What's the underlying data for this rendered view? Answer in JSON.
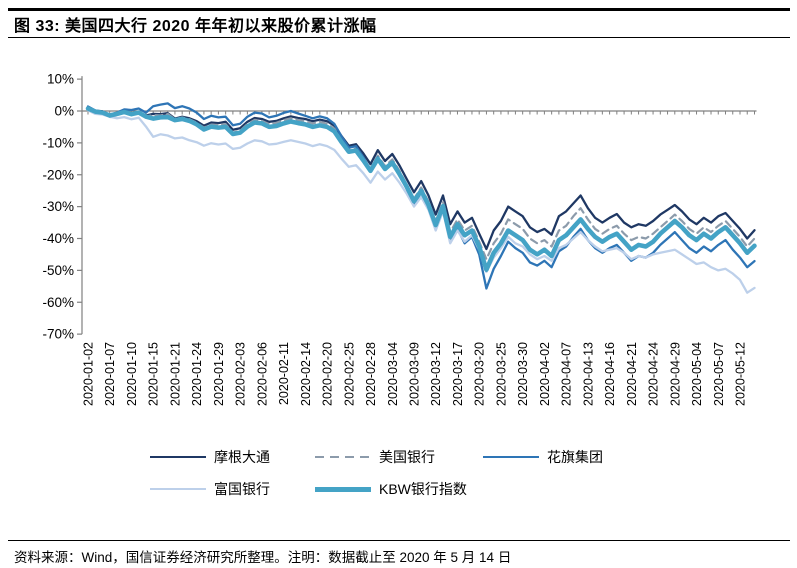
{
  "header": {
    "title": "图 33: 美国四大行 2020 年年初以来股价累计涨幅"
  },
  "footer": {
    "source": "资料来源：Wind，国信证券经济研究所整理。注明：数据截止至 2020 年 5 月 14 日"
  },
  "colors": {
    "axis": "#808080",
    "jpm": "#1F3864",
    "bac": "#8C9BAB",
    "citi": "#2E75B6",
    "wfc": "#BDD0EA",
    "kbw": "#44A3C6"
  },
  "chart_data": {
    "type": "line",
    "title": "美国四大行 2020 年年初以来股价累计涨幅",
    "xlabel": "",
    "ylabel": "",
    "ylim": [
      -70,
      10
    ],
    "grid": false,
    "legend_position": "bottom",
    "y_ticks": [
      10,
      0,
      -10,
      -20,
      -30,
      -40,
      -50,
      -60,
      -70
    ],
    "y_tick_suffix": "%",
    "x_tick_labels": [
      "2020-01-02",
      "2020-01-07",
      "2020-01-10",
      "2020-01-15",
      "2020-01-21",
      "2020-01-24",
      "2020-01-29",
      "2020-02-03",
      "2020-02-06",
      "2020-02-11",
      "2020-02-14",
      "2020-02-20",
      "2020-02-25",
      "2020-02-28",
      "2020-03-04",
      "2020-03-09",
      "2020-03-12",
      "2020-03-17",
      "2020-03-20",
      "2020-03-25",
      "2020-03-30",
      "2020-04-02",
      "2020-04-07",
      "2020-04-13",
      "2020-04-16",
      "2020-04-21",
      "2020-04-24",
      "2020-04-29",
      "2020-05-04",
      "2020-05-07",
      "2020-05-12"
    ],
    "x_label_every_n_points": 3,
    "points_per_series": 93,
    "series": [
      {
        "key": "jpm",
        "name": "摩根大通",
        "color_key": "jpm",
        "style": "solid",
        "width": 2.3,
        "values": [
          0.9,
          0.1,
          -0.1,
          -1.6,
          -1.2,
          -0.5,
          -1.1,
          -0.3,
          -1.4,
          -0.9,
          -1.0,
          -0.7,
          -2.4,
          -1.8,
          -2.3,
          -3.2,
          -4.6,
          -3.6,
          -3.8,
          -3.4,
          -5.9,
          -5.4,
          -3.4,
          -2.2,
          -2.5,
          -3.4,
          -3.1,
          -2.3,
          -1.7,
          -2.2,
          -2.5,
          -3.2,
          -2.7,
          -3.2,
          -4.6,
          -7.9,
          -10.9,
          -10.4,
          -13.3,
          -16.7,
          -12.3,
          -15.7,
          -13.5,
          -17.1,
          -21.4,
          -25.5,
          -22.0,
          -26.5,
          -32.5,
          -26.5,
          -35.5,
          -31.5,
          -35.0,
          -33.5,
          -38.5,
          -43.3,
          -37.5,
          -34.5,
          -30.0,
          -31.5,
          -33.0,
          -36.5,
          -38.0,
          -37.0,
          -38.8,
          -33.0,
          -31.5,
          -29.0,
          -26.5,
          -30.5,
          -33.5,
          -35.0,
          -33.5,
          -32.3,
          -35.0,
          -36.5,
          -35.5,
          -36.0,
          -34.5,
          -32.5,
          -31.0,
          -29.5,
          -31.5,
          -34.0,
          -35.5,
          -33.5,
          -35.0,
          -33.0,
          -32.0,
          -34.5,
          -37.0,
          -40.0,
          -37.4
        ]
      },
      {
        "key": "bac",
        "name": "美国银行",
        "color_key": "bac",
        "style": "dashed",
        "width": 2.2,
        "values": [
          0.7,
          -0.1,
          -0.4,
          -1.9,
          -1.3,
          -0.4,
          -1.3,
          -0.6,
          -1.7,
          -1.3,
          -1.4,
          -0.9,
          -2.6,
          -2.0,
          -2.6,
          -3.7,
          -5.2,
          -4.3,
          -4.4,
          -4.1,
          -6.8,
          -6.2,
          -4.1,
          -2.8,
          -3.1,
          -4.1,
          -3.7,
          -2.9,
          -2.3,
          -2.8,
          -3.2,
          -3.9,
          -3.4,
          -4.0,
          -5.5,
          -9.1,
          -12.2,
          -11.8,
          -14.8,
          -18.2,
          -14.0,
          -17.3,
          -15.2,
          -18.8,
          -23.2,
          -27.5,
          -24.0,
          -28.5,
          -34.5,
          -28.5,
          -38.0,
          -34.0,
          -37.5,
          -36.0,
          -41.0,
          -46.5,
          -41.5,
          -38.5,
          -34.0,
          -35.5,
          -37.0,
          -40.0,
          -41.5,
          -40.5,
          -42.5,
          -37.5,
          -36.0,
          -33.0,
          -30.5,
          -34.0,
          -37.0,
          -38.5,
          -37.0,
          -36.0,
          -38.5,
          -40.5,
          -39.5,
          -40.0,
          -38.5,
          -36.5,
          -34.5,
          -32.5,
          -34.5,
          -37.0,
          -38.5,
          -36.5,
          -38.0,
          -36.0,
          -34.5,
          -37.0,
          -39.5,
          -42.5,
          -40.0
        ]
      },
      {
        "key": "citi",
        "name": "花旗集团",
        "color_key": "citi",
        "style": "solid",
        "width": 2.3,
        "values": [
          1.4,
          0.2,
          -0.3,
          -1.1,
          -0.5,
          0.5,
          0.3,
          0.8,
          -0.5,
          1.5,
          2.0,
          2.4,
          0.9,
          1.5,
          0.8,
          -0.5,
          -2.5,
          -1.5,
          -2.0,
          -1.8,
          -4.5,
          -4.0,
          -1.8,
          -0.5,
          -0.8,
          -2.0,
          -1.5,
          -0.6,
          0.0,
          -0.8,
          -1.5,
          -2.3,
          -1.7,
          -2.3,
          -4.0,
          -8.0,
          -11.5,
          -11.0,
          -14.5,
          -18.5,
          -14.5,
          -18.0,
          -16.0,
          -20.0,
          -24.5,
          -29.5,
          -25.5,
          -30.5,
          -37.0,
          -30.5,
          -41.0,
          -37.0,
          -41.5,
          -39.5,
          -45.0,
          -55.7,
          -49.5,
          -45.5,
          -41.0,
          -43.0,
          -44.5,
          -47.5,
          -48.5,
          -47.0,
          -49.0,
          -44.0,
          -42.5,
          -39.5,
          -37.0,
          -40.5,
          -43.0,
          -44.5,
          -43.0,
          -42.0,
          -44.5,
          -47.0,
          -45.5,
          -46.0,
          -44.5,
          -42.0,
          -40.0,
          -38.0,
          -40.5,
          -43.0,
          -44.5,
          -42.5,
          -44.0,
          -42.0,
          -40.5,
          -43.5,
          -46.0,
          -49.0,
          -47.1
        ]
      },
      {
        "key": "wfc",
        "name": "富国银行",
        "color_key": "wfc",
        "style": "solid",
        "width": 2.3,
        "values": [
          0.2,
          -0.9,
          -1.1,
          -1.8,
          -2.3,
          -1.9,
          -2.6,
          -2.1,
          -4.9,
          -8.1,
          -7.3,
          -7.7,
          -8.6,
          -8.3,
          -9.2,
          -9.8,
          -10.9,
          -10.1,
          -10.5,
          -10.2,
          -11.9,
          -11.5,
          -10.2,
          -9.2,
          -9.5,
          -10.5,
          -10.3,
          -9.7,
          -9.2,
          -9.7,
          -10.2,
          -11.0,
          -10.4,
          -11.0,
          -12.2,
          -15.0,
          -17.5,
          -17.0,
          -19.5,
          -22.5,
          -19.0,
          -21.5,
          -19.5,
          -22.5,
          -26.0,
          -30.0,
          -27.0,
          -31.0,
          -37.5,
          -31.5,
          -41.5,
          -37.5,
          -41.0,
          -39.0,
          -43.5,
          -50.5,
          -46.0,
          -43.0,
          -39.5,
          -41.5,
          -42.5,
          -45.0,
          -46.5,
          -45.5,
          -47.0,
          -43.0,
          -42.0,
          -40.0,
          -38.0,
          -40.5,
          -42.5,
          -44.0,
          -43.5,
          -43.0,
          -44.5,
          -46.5,
          -45.5,
          -46.0,
          -45.0,
          -44.5,
          -44.0,
          -43.5,
          -45.0,
          -46.5,
          -48.0,
          -47.5,
          -49.0,
          -50.0,
          -49.5,
          -51.0,
          -53.0,
          -57.0,
          -55.5
        ]
      },
      {
        "key": "kbw",
        "name": "KBW银行指数",
        "color_key": "kbw",
        "style": "solid",
        "width": 4.5,
        "values": [
          0.8,
          -0.2,
          -0.5,
          -1.4,
          -0.9,
          -0.3,
          -1.0,
          -0.5,
          -1.8,
          -2.4,
          -2.0,
          -1.9,
          -2.9,
          -2.5,
          -3.1,
          -4.2,
          -5.8,
          -4.9,
          -5.2,
          -5.0,
          -7.2,
          -6.8,
          -4.9,
          -3.6,
          -3.9,
          -5.0,
          -4.7,
          -3.9,
          -3.3,
          -3.8,
          -4.2,
          -5.0,
          -4.5,
          -5.0,
          -6.4,
          -9.8,
          -12.8,
          -12.4,
          -15.5,
          -18.8,
          -15.0,
          -18.2,
          -16.2,
          -19.8,
          -23.8,
          -28.3,
          -25.0,
          -29.5,
          -35.8,
          -29.8,
          -39.5,
          -35.5,
          -39.0,
          -37.5,
          -42.5,
          -49.8,
          -44.5,
          -41.5,
          -37.5,
          -39.0,
          -40.5,
          -43.5,
          -45.0,
          -43.5,
          -45.5,
          -40.5,
          -39.0,
          -36.5,
          -34.0,
          -37.0,
          -39.5,
          -41.0,
          -39.5,
          -38.5,
          -41.0,
          -43.5,
          -42.0,
          -42.5,
          -41.0,
          -38.5,
          -36.5,
          -34.5,
          -36.5,
          -39.0,
          -40.5,
          -38.5,
          -40.0,
          -38.0,
          -36.5,
          -39.0,
          -41.5,
          -44.5,
          -42.3
        ]
      }
    ],
    "legend_rows": [
      [
        "jpm",
        "bac",
        "citi"
      ],
      [
        "wfc",
        "kbw"
      ]
    ]
  }
}
